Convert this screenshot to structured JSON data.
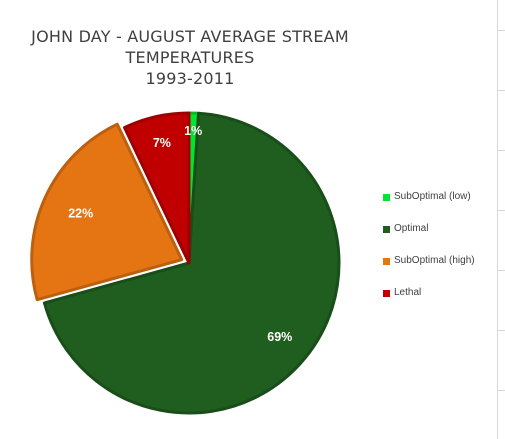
{
  "chart_data": {
    "type": "pie",
    "title_lines": [
      "JOHN DAY - AUGUST AVERAGE STREAM",
      "TEMPERATURES",
      "1993-2011"
    ],
    "slices": [
      {
        "name": "SubOptimal (low)",
        "value": 1,
        "label": "1%",
        "color": "#00e62e"
      },
      {
        "name": "Optimal",
        "value": 69,
        "label": "69%",
        "color": "#1f5e1f"
      },
      {
        "name": "SubOptimal (high)",
        "value": 22,
        "label": "22%",
        "color": "#e57412"
      },
      {
        "name": "Lethal",
        "value": 7,
        "label": "7%",
        "color": "#c00000"
      }
    ],
    "start_angle_deg": 0,
    "direction": "clockwise",
    "legend_position": "right"
  }
}
